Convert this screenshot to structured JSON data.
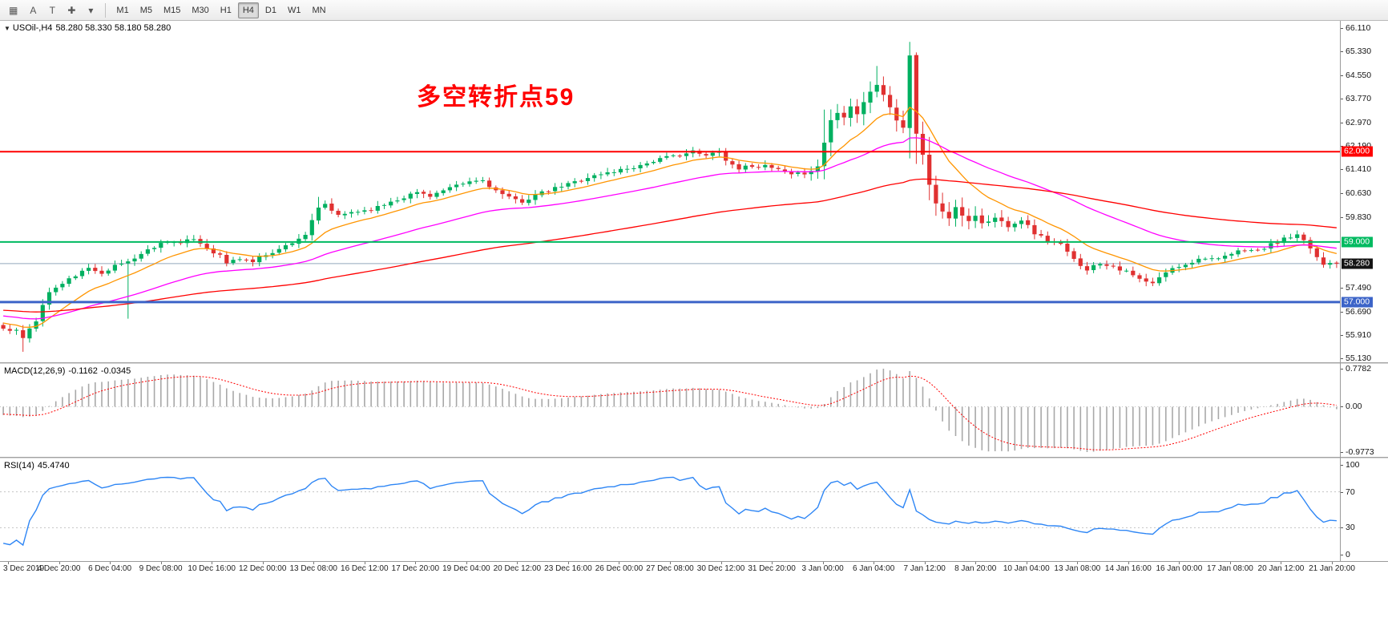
{
  "toolbar": {
    "icons": [
      {
        "name": "grid-icon",
        "glyph": "▦"
      },
      {
        "name": "letter-a-icon",
        "glyph": "A"
      },
      {
        "name": "letter-t-icon",
        "glyph": "T"
      },
      {
        "name": "crosshair-icon",
        "glyph": "✚"
      },
      {
        "name": "dropdown-caret-icon",
        "glyph": "▾"
      }
    ],
    "timeframes": [
      "M1",
      "M5",
      "M15",
      "M30",
      "H1",
      "H4",
      "D1",
      "W1",
      "MN"
    ],
    "active_timeframe": "H4"
  },
  "main_chart": {
    "symbol_label": "USOil-,H4",
    "ohlc": "58.280 58.330 58.180 58.280",
    "annotation": {
      "text": "多空转折点59",
      "color": "#FF0000"
    },
    "price_axis_labels": [
      "66.110",
      "65.330",
      "64.550",
      "63.770",
      "62.970",
      "62.190",
      "61.410",
      "60.630",
      "59.830",
      "57.490",
      "56.690",
      "55.910",
      "55.130"
    ],
    "hlines": [
      {
        "price": 62.0,
        "label": "62.000",
        "color": "#FF0000",
        "width": 2
      },
      {
        "price": 59.0,
        "label": "59.000",
        "color": "#00BA60",
        "width": 2
      },
      {
        "price": 57.0,
        "label": "57.000",
        "color": "#3C64C8",
        "width": 3
      }
    ],
    "last_price": {
      "value": 58.28,
      "label": "58.280",
      "line_color": "#93A8BC",
      "badge_bg": "#141414"
    }
  },
  "indicators": {
    "macd": {
      "label": "MACD(12,26,9)",
      "value_main": "-0.1162",
      "value_signal": "-0.0345",
      "axis_labels": [
        "0.7782",
        "0.00",
        "-0.9773"
      ],
      "params": {
        "fast": 12,
        "slow": 26,
        "signal": 9
      }
    },
    "rsi": {
      "label": "RSI(14)",
      "value": "45.4740",
      "period": 14,
      "levels": [
        70,
        30
      ],
      "axis_labels": [
        "100",
        "70",
        "30",
        "0"
      ]
    }
  },
  "time_axis": {
    "labels": [
      "3 Dec 2019",
      "4 Dec 20:00",
      "6 Dec 04:00",
      "9 Dec 08:00",
      "10 Dec 16:00",
      "12 Dec 00:00",
      "13 Dec 08:00",
      "16 Dec 12:00",
      "17 Dec 20:00",
      "19 Dec 04:00",
      "20 Dec 12:00",
      "23 Dec 16:00",
      "26 Dec 00:00",
      "27 Dec 08:00",
      "30 Dec 12:00",
      "31 Dec 20:00",
      "3 Jan 00:00",
      "6 Jan 04:00",
      "7 Jan 12:00",
      "8 Jan 20:00",
      "10 Jan 04:00",
      "13 Jan 08:00",
      "14 Jan 16:00",
      "16 Jan 00:00",
      "17 Jan 08:00",
      "20 Jan 12:00",
      "21 Jan 20:00"
    ]
  },
  "colors": {
    "up": "#00B060",
    "down": "#E03131",
    "macd_hist": "#A8A8A8",
    "macd_signal": "#FF0000",
    "rsi": "#2E86F5",
    "level_dotted": "#C4C4C4"
  },
  "chart_data": {
    "type": "candlestick",
    "symbol": "USOil",
    "timeframe": "H4",
    "title_annotation": "多空转折点59",
    "bars_visible": 204,
    "warmup_bars": 30,
    "seed": 11,
    "ylim": [
      55.0,
      66.35
    ],
    "last_close": 58.28,
    "price_waypoints": [
      [
        0,
        56.15
      ],
      [
        2,
        56.05
      ],
      [
        3,
        55.75
      ],
      [
        4,
        56.15
      ],
      [
        5,
        56.4
      ],
      [
        7,
        57.35
      ],
      [
        9,
        57.6
      ],
      [
        11,
        57.9
      ],
      [
        13,
        58.1
      ],
      [
        15,
        58.0
      ],
      [
        17,
        58.2
      ],
      [
        19,
        58.35
      ],
      [
        21,
        58.6
      ],
      [
        23,
        58.85
      ],
      [
        25,
        59.05
      ],
      [
        27,
        58.95
      ],
      [
        29,
        59.1
      ],
      [
        31,
        58.8
      ],
      [
        33,
        58.55
      ],
      [
        34,
        58.3
      ],
      [
        36,
        58.45
      ],
      [
        38,
        58.35
      ],
      [
        40,
        58.6
      ],
      [
        42,
        58.75
      ],
      [
        44,
        59.0
      ],
      [
        46,
        59.25
      ],
      [
        48,
        60.1
      ],
      [
        49,
        60.25
      ],
      [
        51,
        59.85
      ],
      [
        53,
        60.0
      ],
      [
        55,
        60.05
      ],
      [
        57,
        60.15
      ],
      [
        59,
        60.35
      ],
      [
        61,
        60.5
      ],
      [
        63,
        60.65
      ],
      [
        65,
        60.55
      ],
      [
        67,
        60.7
      ],
      [
        69,
        60.85
      ],
      [
        71,
        61.0
      ],
      [
        73,
        61.05
      ],
      [
        75,
        60.7
      ],
      [
        77,
        60.45
      ],
      [
        79,
        60.35
      ],
      [
        81,
        60.55
      ],
      [
        83,
        60.7
      ],
      [
        85,
        60.85
      ],
      [
        87,
        61.0
      ],
      [
        89,
        61.15
      ],
      [
        91,
        61.25
      ],
      [
        93,
        61.35
      ],
      [
        95,
        61.45
      ],
      [
        97,
        61.55
      ],
      [
        99,
        61.7
      ],
      [
        101,
        61.8
      ],
      [
        103,
        61.9
      ],
      [
        105,
        62.0
      ],
      [
        107,
        61.85
      ],
      [
        109,
        62.05
      ],
      [
        110,
        61.7
      ],
      [
        112,
        61.45
      ],
      [
        114,
        61.55
      ],
      [
        116,
        61.5
      ],
      [
        118,
        61.4
      ],
      [
        120,
        61.2
      ],
      [
        122,
        61.3
      ],
      [
        124,
        61.5
      ],
      [
        125,
        62.3
      ],
      [
        126,
        63.05
      ],
      [
        127,
        63.3
      ],
      [
        128,
        63.15
      ],
      [
        129,
        63.5
      ],
      [
        130,
        63.3
      ],
      [
        131,
        63.7
      ],
      [
        132,
        64.0
      ],
      [
        133,
        64.25
      ],
      [
        134,
        63.9
      ],
      [
        135,
        63.45
      ],
      [
        136,
        63.05
      ],
      [
        137,
        62.8
      ],
      [
        138,
        65.2
      ],
      [
        139,
        62.6
      ],
      [
        140,
        61.9
      ],
      [
        141,
        60.9
      ],
      [
        142,
        60.3
      ],
      [
        143,
        60.0
      ],
      [
        144,
        59.8
      ],
      [
        145,
        60.1
      ],
      [
        146,
        59.9
      ],
      [
        147,
        59.7
      ],
      [
        148,
        59.9
      ],
      [
        149,
        59.6
      ],
      [
        151,
        59.8
      ],
      [
        153,
        59.55
      ],
      [
        155,
        59.75
      ],
      [
        157,
        59.3
      ],
      [
        159,
        59.05
      ],
      [
        161,
        58.9
      ],
      [
        163,
        58.4
      ],
      [
        165,
        58.1
      ],
      [
        167,
        58.3
      ],
      [
        169,
        58.2
      ],
      [
        171,
        58.0
      ],
      [
        173,
        57.75
      ],
      [
        175,
        57.6
      ],
      [
        177,
        58.0
      ],
      [
        179,
        58.2
      ],
      [
        181,
        58.35
      ],
      [
        183,
        58.5
      ],
      [
        185,
        58.4
      ],
      [
        187,
        58.6
      ],
      [
        189,
        58.75
      ],
      [
        191,
        58.7
      ],
      [
        193,
        58.9
      ],
      [
        195,
        59.1
      ],
      [
        197,
        59.2
      ],
      [
        199,
        58.8
      ],
      [
        200,
        58.5
      ],
      [
        201,
        58.25
      ],
      [
        202,
        58.35
      ],
      [
        203,
        58.28
      ]
    ],
    "wick_overrides": {
      "3": {
        "low": 55.35
      },
      "19": {
        "low": 56.45
      },
      "48": {
        "high": 60.5
      },
      "125": {
        "high": 63.4
      },
      "133": {
        "high": 64.85
      },
      "138": {
        "high": 65.65
      },
      "139": {
        "high": 65.3
      }
    },
    "no_noise_bars": [
      125,
      126,
      137,
      138,
      139,
      140,
      141,
      203
    ],
    "moving_averages": [
      {
        "name": "ma-fast",
        "period": 12,
        "color": "#FF9500"
      },
      {
        "name": "ma-medium",
        "period": 40,
        "color": "#FF00FF"
      },
      {
        "name": "ma-slow",
        "period": 110,
        "color": "#FF0000"
      }
    ]
  }
}
